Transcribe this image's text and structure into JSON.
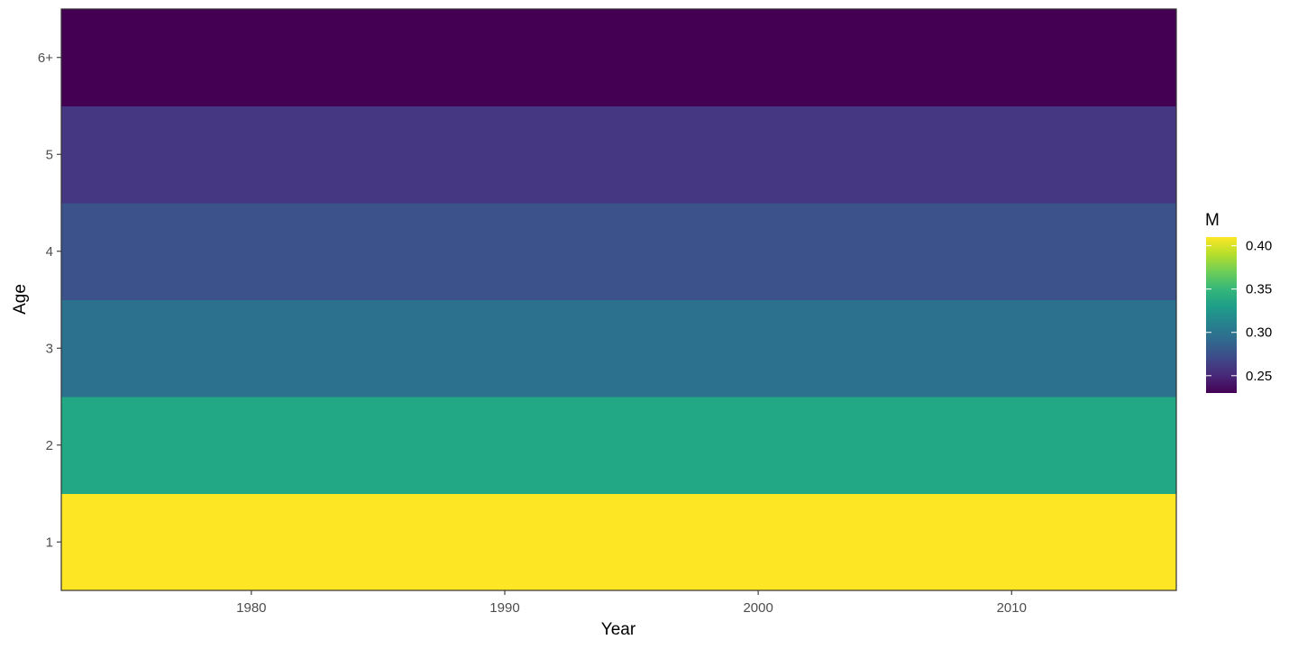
{
  "chart_data": {
    "type": "heatmap",
    "title": "",
    "xlabel": "Year",
    "ylabel": "Age",
    "x_range": [
      1972.5,
      2016.5
    ],
    "x_ticks": [
      1980,
      1990,
      2000,
      2010
    ],
    "y_categories": [
      "1",
      "2",
      "3",
      "4",
      "5",
      "6+"
    ],
    "cells": [
      {
        "age": "1",
        "x_start": 1972.5,
        "x_end": 2016.5,
        "M": 0.41,
        "color": "#fde725"
      },
      {
        "age": "2",
        "x_start": 1972.5,
        "x_end": 2016.5,
        "M": 0.33,
        "color": "#22a884"
      },
      {
        "age": "3",
        "x_start": 1972.5,
        "x_end": 2016.5,
        "M": 0.295,
        "color": "#2c728e"
      },
      {
        "age": "4",
        "x_start": 1972.5,
        "x_end": 2016.5,
        "M": 0.27,
        "color": "#3b528b"
      },
      {
        "age": "5",
        "x_start": 1972.5,
        "x_end": 2016.5,
        "M": 0.25,
        "color": "#453781"
      },
      {
        "age": "6+",
        "x_start": 1972.5,
        "x_end": 2016.5,
        "M": 0.23,
        "color": "#440154"
      }
    ],
    "legend": {
      "title": "M",
      "position": "right",
      "range": [
        0.23,
        0.41
      ],
      "ticks": [
        0.25,
        0.3,
        0.35,
        0.4
      ],
      "tick_labels": [
        "0.25",
        "0.30",
        "0.35",
        "0.40"
      ],
      "colors": [
        "#440154",
        "#482878",
        "#3e4989",
        "#31688e",
        "#26828e",
        "#1f9e89",
        "#35b779",
        "#6ece58",
        "#b5de2b",
        "#fde725"
      ]
    },
    "grid": false
  }
}
